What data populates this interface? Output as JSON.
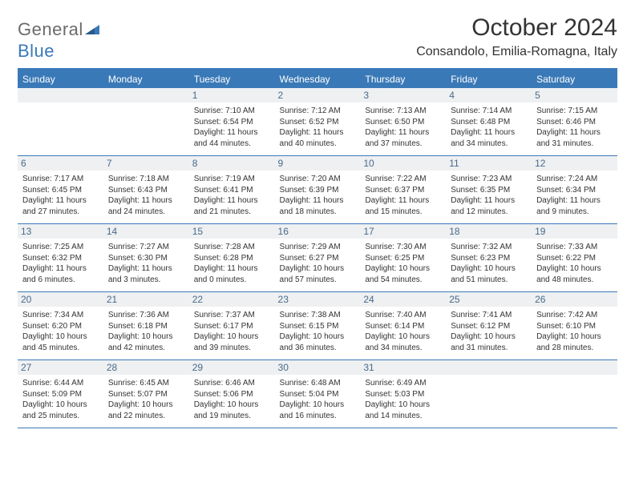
{
  "brand": {
    "word1": "General",
    "word2": "Blue"
  },
  "title": {
    "month": "October 2024",
    "location": "Consandolo, Emilia-Romagna, Italy"
  },
  "colors": {
    "accent": "#3a79b7",
    "daynum_bg": "#eef0f2",
    "daynum_fg": "#4a6a8a",
    "text": "#333333",
    "white": "#ffffff"
  },
  "daysOfWeek": [
    "Sunday",
    "Monday",
    "Tuesday",
    "Wednesday",
    "Thursday",
    "Friday",
    "Saturday"
  ],
  "weeks": [
    [
      null,
      null,
      {
        "n": "1",
        "sr": "7:10 AM",
        "ss": "6:54 PM",
        "dl": "11 hours and 44 minutes."
      },
      {
        "n": "2",
        "sr": "7:12 AM",
        "ss": "6:52 PM",
        "dl": "11 hours and 40 minutes."
      },
      {
        "n": "3",
        "sr": "7:13 AM",
        "ss": "6:50 PM",
        "dl": "11 hours and 37 minutes."
      },
      {
        "n": "4",
        "sr": "7:14 AM",
        "ss": "6:48 PM",
        "dl": "11 hours and 34 minutes."
      },
      {
        "n": "5",
        "sr": "7:15 AM",
        "ss": "6:46 PM",
        "dl": "11 hours and 31 minutes."
      }
    ],
    [
      {
        "n": "6",
        "sr": "7:17 AM",
        "ss": "6:45 PM",
        "dl": "11 hours and 27 minutes."
      },
      {
        "n": "7",
        "sr": "7:18 AM",
        "ss": "6:43 PM",
        "dl": "11 hours and 24 minutes."
      },
      {
        "n": "8",
        "sr": "7:19 AM",
        "ss": "6:41 PM",
        "dl": "11 hours and 21 minutes."
      },
      {
        "n": "9",
        "sr": "7:20 AM",
        "ss": "6:39 PM",
        "dl": "11 hours and 18 minutes."
      },
      {
        "n": "10",
        "sr": "7:22 AM",
        "ss": "6:37 PM",
        "dl": "11 hours and 15 minutes."
      },
      {
        "n": "11",
        "sr": "7:23 AM",
        "ss": "6:35 PM",
        "dl": "11 hours and 12 minutes."
      },
      {
        "n": "12",
        "sr": "7:24 AM",
        "ss": "6:34 PM",
        "dl": "11 hours and 9 minutes."
      }
    ],
    [
      {
        "n": "13",
        "sr": "7:25 AM",
        "ss": "6:32 PM",
        "dl": "11 hours and 6 minutes."
      },
      {
        "n": "14",
        "sr": "7:27 AM",
        "ss": "6:30 PM",
        "dl": "11 hours and 3 minutes."
      },
      {
        "n": "15",
        "sr": "7:28 AM",
        "ss": "6:28 PM",
        "dl": "11 hours and 0 minutes."
      },
      {
        "n": "16",
        "sr": "7:29 AM",
        "ss": "6:27 PM",
        "dl": "10 hours and 57 minutes."
      },
      {
        "n": "17",
        "sr": "7:30 AM",
        "ss": "6:25 PM",
        "dl": "10 hours and 54 minutes."
      },
      {
        "n": "18",
        "sr": "7:32 AM",
        "ss": "6:23 PM",
        "dl": "10 hours and 51 minutes."
      },
      {
        "n": "19",
        "sr": "7:33 AM",
        "ss": "6:22 PM",
        "dl": "10 hours and 48 minutes."
      }
    ],
    [
      {
        "n": "20",
        "sr": "7:34 AM",
        "ss": "6:20 PM",
        "dl": "10 hours and 45 minutes."
      },
      {
        "n": "21",
        "sr": "7:36 AM",
        "ss": "6:18 PM",
        "dl": "10 hours and 42 minutes."
      },
      {
        "n": "22",
        "sr": "7:37 AM",
        "ss": "6:17 PM",
        "dl": "10 hours and 39 minutes."
      },
      {
        "n": "23",
        "sr": "7:38 AM",
        "ss": "6:15 PM",
        "dl": "10 hours and 36 minutes."
      },
      {
        "n": "24",
        "sr": "7:40 AM",
        "ss": "6:14 PM",
        "dl": "10 hours and 34 minutes."
      },
      {
        "n": "25",
        "sr": "7:41 AM",
        "ss": "6:12 PM",
        "dl": "10 hours and 31 minutes."
      },
      {
        "n": "26",
        "sr": "7:42 AM",
        "ss": "6:10 PM",
        "dl": "10 hours and 28 minutes."
      }
    ],
    [
      {
        "n": "27",
        "sr": "6:44 AM",
        "ss": "5:09 PM",
        "dl": "10 hours and 25 minutes."
      },
      {
        "n": "28",
        "sr": "6:45 AM",
        "ss": "5:07 PM",
        "dl": "10 hours and 22 minutes."
      },
      {
        "n": "29",
        "sr": "6:46 AM",
        "ss": "5:06 PM",
        "dl": "10 hours and 19 minutes."
      },
      {
        "n": "30",
        "sr": "6:48 AM",
        "ss": "5:04 PM",
        "dl": "10 hours and 16 minutes."
      },
      {
        "n": "31",
        "sr": "6:49 AM",
        "ss": "5:03 PM",
        "dl": "10 hours and 14 minutes."
      },
      null,
      null
    ]
  ],
  "labels": {
    "sunrise": "Sunrise: ",
    "sunset": "Sunset: ",
    "daylight": "Daylight: "
  }
}
